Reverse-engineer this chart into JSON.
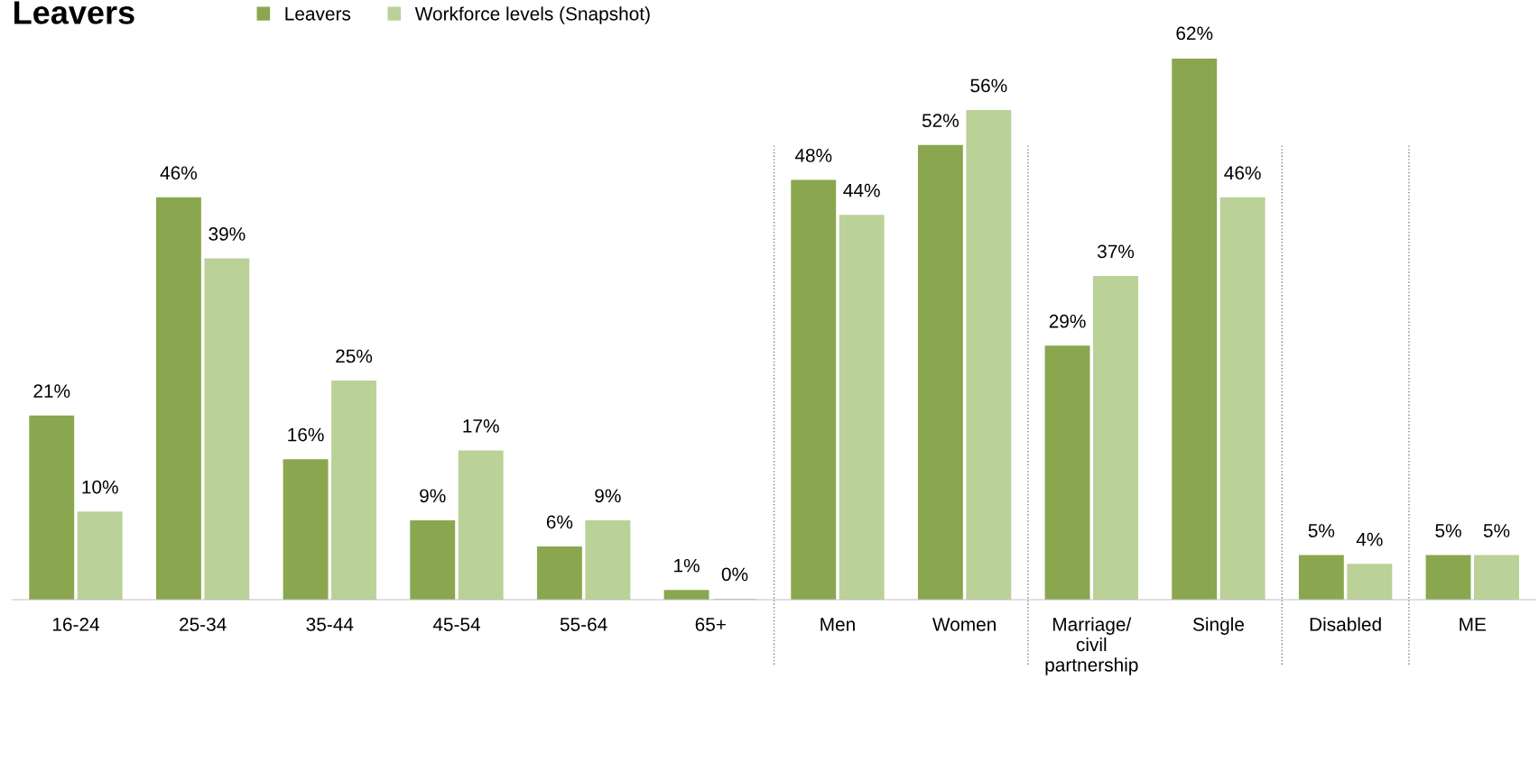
{
  "chart_data": {
    "type": "bar",
    "title": "Leavers",
    "categories": [
      "16-24",
      "25-34",
      "35-44",
      "45-54",
      "55-64",
      "65+",
      "Men",
      "Women",
      "Marriage/\ncivil\npartnership",
      "Single",
      "Disabled",
      "ME"
    ],
    "series": [
      {
        "name": "Leavers",
        "color": "#8aa74f",
        "values": [
          21,
          46,
          16,
          9,
          6,
          1,
          48,
          52,
          29,
          62,
          5,
          5
        ],
        "value_labels": [
          "21%",
          "46%",
          "16%",
          "9%",
          "6%",
          "1%",
          "48%",
          "52%",
          "29%",
          "62%",
          "5%",
          "5%"
        ]
      },
      {
        "name": "Workforce levels (Snapshot)",
        "color": "#bad198",
        "values": [
          10,
          39,
          25,
          17,
          9,
          0,
          44,
          56,
          37,
          46,
          4,
          5
        ],
        "value_labels": [
          "10%",
          "39%",
          "25%",
          "17%",
          "9%",
          "0%",
          "44%",
          "56%",
          "37%",
          "46%",
          "4%",
          "5%"
        ]
      }
    ],
    "legend": "top",
    "grid": false
  }
}
